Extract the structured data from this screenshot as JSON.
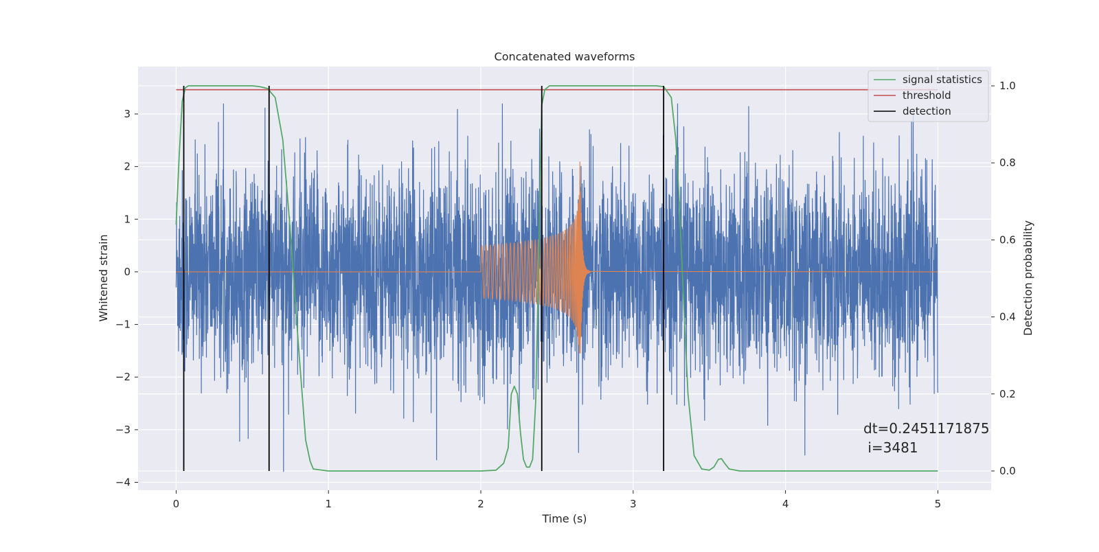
{
  "chart_data": {
    "type": "line",
    "title": "Concatenated waveforms",
    "xlabel": "Time (s)",
    "ylabel": "Whitened strain",
    "y2label": "Detection probability",
    "xlim": [
      -0.25,
      5.35
    ],
    "ylim": [
      -4.15,
      3.9
    ],
    "y2lim": [
      -0.05,
      1.05
    ],
    "xticks": [
      0,
      1,
      2,
      3,
      4,
      5
    ],
    "yticks": [
      -4,
      -3,
      -2,
      -1,
      0,
      1,
      2,
      3
    ],
    "y2ticks": [
      0.0,
      0.2,
      0.4,
      0.6,
      0.8,
      1.0
    ],
    "y2tick_labels": [
      "0.0",
      "0.2",
      "0.4",
      "0.6",
      "0.8",
      "1.0"
    ],
    "ytick_labels": [
      "−4",
      "−3",
      "−2",
      "−1",
      "0",
      "1",
      "2",
      "3"
    ],
    "grid": true,
    "legend_position": "top-right",
    "legend": [
      {
        "label": "signal statistics",
        "color": "#55a868"
      },
      {
        "label": "threshold",
        "color": "#c44e52"
      },
      {
        "label": "detection",
        "color": "#000000"
      }
    ],
    "colors": {
      "background": "#eaeaf2",
      "noise": "#4c72b0",
      "template": "#dd8452",
      "statistic": "#55a868",
      "threshold": "#c44e52",
      "detection": "#000000"
    },
    "noise_series": {
      "name": "",
      "x_range": [
        0,
        5
      ],
      "typical_amplitude": 1.4,
      "peak_max": 3.2,
      "peak_min": -3.8
    },
    "template_series": {
      "name": "",
      "chirp_start": 2.0,
      "chirp_peak": 2.65,
      "start_amplitude": 0.5,
      "peak_positive": 2.25,
      "peak_negative": -1.55
    },
    "statistic_series": {
      "name": "signal statistics",
      "x": [
        0.0,
        0.02,
        0.04,
        0.06,
        0.08,
        0.1,
        0.2,
        0.3,
        0.4,
        0.5,
        0.55,
        0.6,
        0.65,
        0.7,
        0.75,
        0.8,
        0.85,
        0.88,
        0.9,
        1.0,
        1.5,
        2.0,
        2.1,
        2.15,
        2.18,
        2.2,
        2.22,
        2.24,
        2.26,
        2.28,
        2.3,
        2.32,
        2.34,
        2.36,
        2.38,
        2.4,
        2.42,
        2.45,
        2.5,
        3.0,
        3.15,
        3.2,
        3.25,
        3.28,
        3.3,
        3.33,
        3.36,
        3.4,
        3.45,
        3.5,
        3.53,
        3.56,
        3.58,
        3.6,
        3.63,
        3.7,
        4.0,
        4.5,
        5.0
      ],
      "y": [
        0.64,
        0.82,
        0.96,
        0.995,
        1.0,
        1.0,
        1.0,
        1.0,
        1.0,
        1.0,
        0.998,
        0.993,
        0.97,
        0.86,
        0.62,
        0.34,
        0.08,
        0.025,
        0.005,
        0.0,
        0.0,
        0.0,
        0.002,
        0.02,
        0.06,
        0.2,
        0.22,
        0.2,
        0.1,
        0.03,
        0.01,
        0.01,
        0.03,
        0.18,
        0.55,
        0.95,
        0.99,
        1.0,
        1.0,
        1.0,
        1.0,
        0.998,
        0.97,
        0.86,
        0.72,
        0.45,
        0.2,
        0.04,
        0.005,
        0.002,
        0.01,
        0.03,
        0.032,
        0.02,
        0.005,
        0.0,
        0.0,
        0.0,
        0.0
      ]
    },
    "threshold_series": {
      "name": "threshold",
      "x": [
        0,
        5
      ],
      "y": [
        0.99,
        0.99
      ]
    },
    "detections": [
      0.05,
      0.61,
      2.4,
      3.2
    ],
    "annotation": {
      "line1": "dt=0.2451171875",
      "line2": " i=3481"
    }
  }
}
